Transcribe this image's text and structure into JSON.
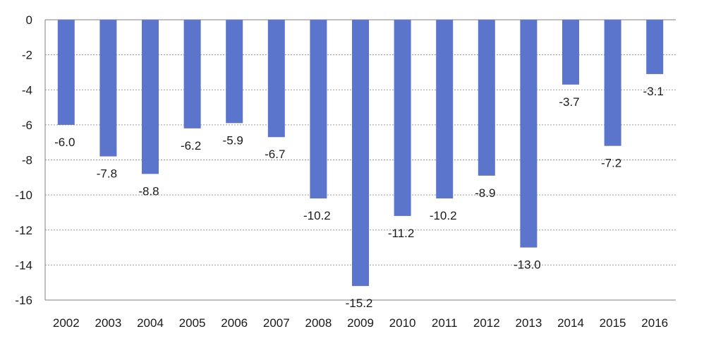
{
  "chart_data": {
    "type": "bar",
    "categories": [
      "2002",
      "2003",
      "2004",
      "2005",
      "2006",
      "2007",
      "2008",
      "2009",
      "2010",
      "2011",
      "2012",
      "2013",
      "2014",
      "2015",
      "2016"
    ],
    "values": [
      -6.0,
      -7.8,
      -8.8,
      -6.2,
      -5.9,
      -6.7,
      -10.2,
      -15.2,
      -11.2,
      -10.2,
      -8.9,
      -13.0,
      -3.7,
      -7.2,
      -3.1
    ],
    "value_labels": [
      "-6.0",
      "-7.8",
      "-8.8",
      "-6.2",
      "-5.9",
      "-6.7",
      "-10.2",
      "-15.2",
      "-11.2",
      "-10.2",
      "-8.9",
      "-13.0",
      "-3.7",
      "-7.2",
      "-3.1"
    ],
    "yticks": [
      0,
      -2,
      -4,
      -6,
      -8,
      -10,
      -12,
      -14,
      -16
    ],
    "ytick_labels": [
      "0",
      "-2",
      "-4",
      "-6",
      "-8",
      "-10",
      "-12",
      "-14",
      "-16"
    ],
    "ylim": [
      -16,
      0
    ],
    "title": "",
    "xlabel": "",
    "ylabel": "",
    "grid": true,
    "legend": "none",
    "colors": {
      "bar": "#5B75CC",
      "grid": "#9a9a9a",
      "axis": "#7f7f7f",
      "text": "#1a1a1a"
    }
  }
}
